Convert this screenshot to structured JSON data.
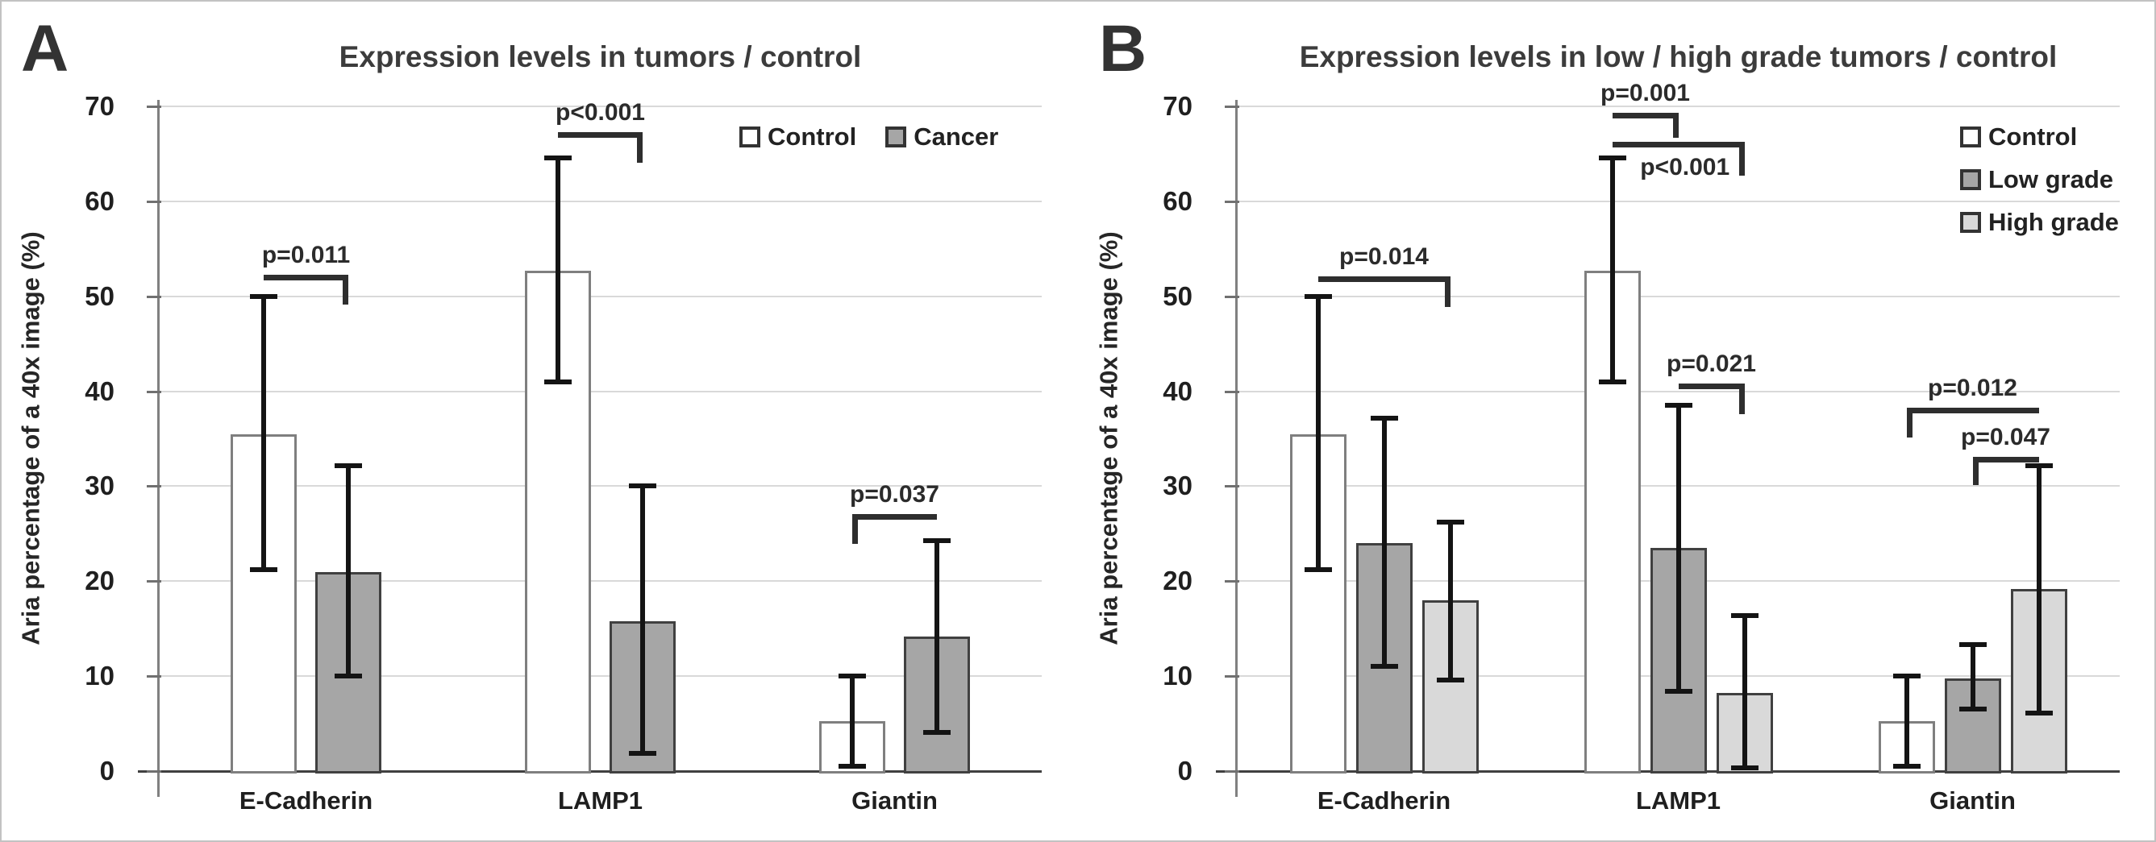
{
  "figure": {
    "background": "#ffffff",
    "border_color": "#c2c2c2",
    "text_color": "#2b2b2b",
    "gridline_color": "#d9d9d9",
    "axis_color": "#404040",
    "error_bar_color": "#141414",
    "bracket_color": "#2e2e2e"
  },
  "chart_data": [
    {
      "type": "bar",
      "panel_label": "A",
      "title": "Expression levels in tumors / control",
      "ylabel": "Aria percentage of a 40x image (%)",
      "xlabel": "",
      "ylim": [
        0,
        70
      ],
      "ytick_interval": 10,
      "yticks": [
        0,
        10,
        20,
        30,
        40,
        50,
        60,
        70
      ],
      "grid": true,
      "legend_position": "top-right-horizontal",
      "categories": [
        "E-Cadherin",
        "LAMP1",
        "Giantin"
      ],
      "series": [
        {
          "name": "Control",
          "fill": "#ffffff",
          "border": "#7f7f7f",
          "values": [
            35.5,
            52.7,
            5.3
          ],
          "error_low": [
            21.2,
            41.0,
            0.5
          ],
          "error_high": [
            50.0,
            64.6,
            10.0
          ]
        },
        {
          "name": "Cancer",
          "fill": "#a6a6a6",
          "border": "#404040",
          "values": [
            21.0,
            15.8,
            14.2
          ],
          "error_low": [
            10.0,
            1.9,
            4.1
          ],
          "error_high": [
            32.2,
            30.0,
            24.3
          ]
        }
      ],
      "significance_brackets": [
        {
          "label": "p=0.011",
          "category": 0,
          "from_series": 0,
          "to_series": 1,
          "y": 52.0,
          "hook_side": "right",
          "hook_drop": 3.2,
          "label_side": "above"
        },
        {
          "label": "p<0.001",
          "category": 1,
          "from_series": 0,
          "to_series": 1,
          "y": 67.0,
          "hook_side": "right",
          "hook_drop": 3.2,
          "label_side": "above"
        },
        {
          "label": "p=0.037",
          "category": 2,
          "from_series": 0,
          "to_series": 1,
          "y": 26.8,
          "hook_side": "left",
          "hook_drop": 3.2,
          "label_side": "above"
        }
      ]
    },
    {
      "type": "bar",
      "panel_label": "B",
      "title": "Expression levels in low / high grade tumors / control",
      "ylabel": "Aria percentage of a 40x image (%)",
      "xlabel": "",
      "ylim": [
        0,
        70
      ],
      "ytick_interval": 10,
      "yticks": [
        0,
        10,
        20,
        30,
        40,
        50,
        60,
        70
      ],
      "grid": true,
      "legend_position": "top-right-vertical",
      "categories": [
        "E-Cadherin",
        "LAMP1",
        "Giantin"
      ],
      "series": [
        {
          "name": "Control",
          "fill": "#ffffff",
          "border": "#7f7f7f",
          "values": [
            35.5,
            52.7,
            5.3
          ],
          "error_low": [
            21.2,
            41.0,
            0.5
          ],
          "error_high": [
            50.0,
            64.6,
            10.0
          ]
        },
        {
          "name": "Low grade",
          "fill": "#a6a6a6",
          "border": "#404040",
          "values": [
            24.0,
            23.5,
            9.8
          ],
          "error_low": [
            11.0,
            8.4,
            6.5
          ],
          "error_high": [
            37.2,
            38.5,
            13.3
          ]
        },
        {
          "name": "High grade",
          "fill": "#d9d9d9",
          "border": "#404040",
          "values": [
            18.0,
            8.2,
            19.2
          ],
          "error_low": [
            9.6,
            0.3,
            6.1
          ],
          "error_high": [
            26.2,
            16.4,
            32.2
          ]
        }
      ],
      "significance_brackets": [
        {
          "label": "p=0.014",
          "category": 0,
          "from_series": 0,
          "to_series": 2,
          "y": 51.8,
          "hook_side": "right",
          "hook_drop": 3.2,
          "label_side": "above"
        },
        {
          "label": "p=0.001",
          "category": 1,
          "from_series": 0,
          "to_series": 1,
          "y": 69.0,
          "hook_side": "right",
          "hook_drop": 2.6,
          "label_side": "above"
        },
        {
          "label": "p<0.001",
          "category": 1,
          "from_series": 0,
          "to_series": 2,
          "y": 66.0,
          "hook_side": "right",
          "hook_drop": 3.6,
          "label_side": "below"
        },
        {
          "label": "p=0.021",
          "category": 1,
          "from_series": 1,
          "to_series": 2,
          "y": 40.5,
          "hook_side": "right",
          "hook_drop": 3.2,
          "label_side": "above"
        },
        {
          "label": "p=0.012",
          "category": 2,
          "from_series": 0,
          "to_series": 2,
          "y": 38.0,
          "hook_side": "left",
          "hook_drop": 3.2,
          "label_side": "above"
        },
        {
          "label": "p=0.047",
          "category": 2,
          "from_series": 1,
          "to_series": 2,
          "y": 32.8,
          "hook_side": "left",
          "hook_drop": 3.0,
          "label_side": "above"
        }
      ]
    }
  ]
}
